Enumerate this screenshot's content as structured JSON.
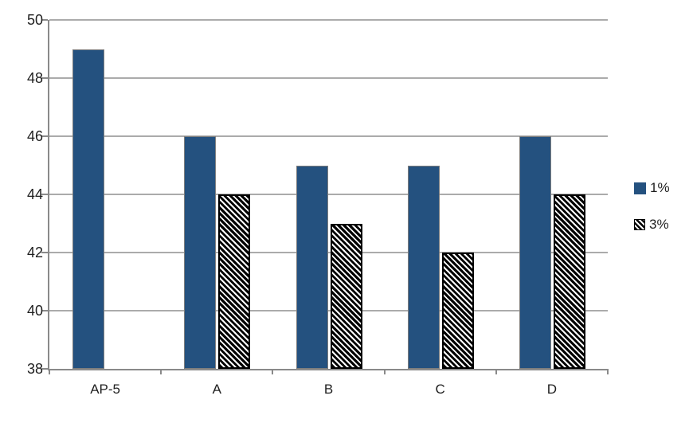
{
  "chart_data": {
    "type": "bar",
    "title": "",
    "categories": [
      "AP-5",
      "A",
      "B",
      "C",
      "D"
    ],
    "series": [
      {
        "name": "1%",
        "style": "solid",
        "color": "#24517F",
        "values": [
          49,
          46,
          45,
          45,
          46
        ]
      },
      {
        "name": "3%",
        "style": "hatch",
        "pattern": "downward-diagonal-stripes",
        "stripe_color": "#000000",
        "stripe_bg": "#FFFFFF",
        "values": [
          null,
          44,
          43,
          42,
          44
        ]
      }
    ],
    "xlabel": "",
    "ylabel": "",
    "ylim": [
      38,
      50
    ],
    "yticks": [
      38,
      40,
      42,
      44,
      46,
      48,
      50
    ],
    "grid": true,
    "legend_position": "right",
    "colors": {
      "gridline": "#ABABAB",
      "axis": "#8A8A8A",
      "text": "#1F1F1F",
      "background": "#FFFFFF"
    }
  }
}
